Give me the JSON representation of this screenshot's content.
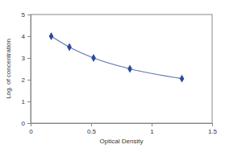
{
  "chart_data": {
    "type": "line",
    "x_label": "Optical Density",
    "y_label": "Log. of concentration",
    "x": [
      0.17,
      0.32,
      0.52,
      0.82,
      1.25
    ],
    "values": [
      4.0,
      3.5,
      3.0,
      2.5,
      2.05
    ],
    "color": "#2b4a9c",
    "marker": "diamond",
    "line_style": "solid",
    "xlim": [
      0,
      1.5
    ],
    "xticks": [
      0,
      0.5,
      1,
      1.5
    ],
    "ylim": [
      0,
      5
    ],
    "yticks": [
      0,
      1,
      2,
      3,
      4,
      5
    ],
    "grid": false
  }
}
